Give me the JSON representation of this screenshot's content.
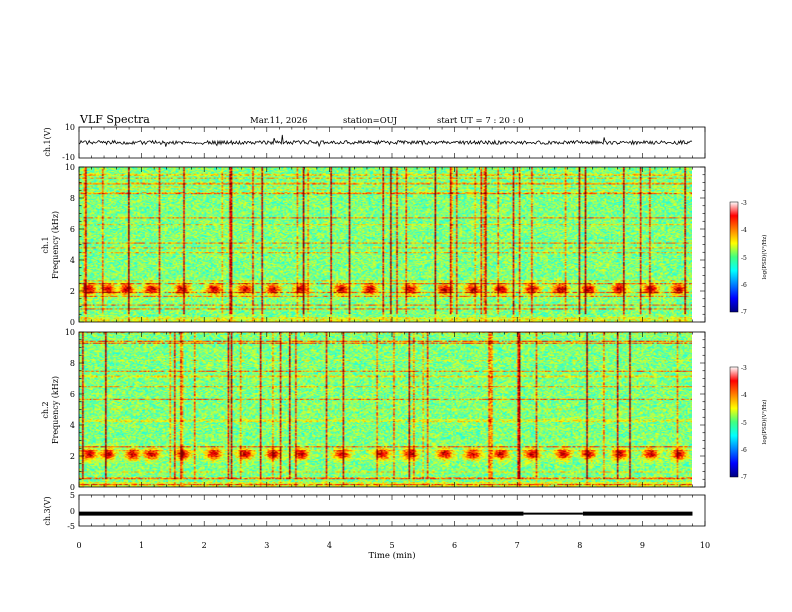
{
  "header": {
    "title": "VLF Spectra",
    "date": "Mar.11, 2026",
    "station": "station=OUJ",
    "start_ut": "start UT =  7 : 20 : 0"
  },
  "chart_data": [
    {
      "type": "line",
      "panel": "ch1-waveform",
      "ylabel": "ch.1(V)",
      "ylim": [
        -10,
        10
      ],
      "y_ticks": [
        "10",
        "-10"
      ],
      "description_values": {
        "baseline_v": 0,
        "amplitude_v": 1.2
      }
    },
    {
      "type": "heatmap",
      "panel": "ch1-spectrogram",
      "ylabel_line1": "ch.1",
      "ylabel_line2": "Frequency  (kHz)",
      "ylim": [
        0,
        10
      ],
      "y_ticks": [
        "0",
        "2",
        "4",
        "6",
        "8",
        "10"
      ],
      "colorbar": {
        "label": "log(PSD)(V²/Hz)",
        "range": [
          -7,
          -3
        ],
        "ticks": [
          "-3",
          "-4",
          "-5",
          "-6",
          "-7"
        ]
      },
      "band_center_khz": 2.0,
      "hiss_level": -5.2,
      "hiss_upper_khz": 5.6,
      "chorus_times_min": [
        0.15,
        0.45,
        0.75,
        1.15,
        1.65,
        2.15,
        2.65,
        3.1,
        3.55,
        4.2,
        4.65,
        5.3,
        5.85,
        6.3,
        6.75,
        7.25,
        7.7,
        8.15,
        8.65,
        9.15,
        9.6
      ]
    },
    {
      "type": "heatmap",
      "panel": "ch2-spectrogram",
      "ylabel_line1": "ch.2",
      "ylabel_line2": "Frequency  (kHz)",
      "ylim": [
        0,
        10
      ],
      "y_ticks": [
        "0",
        "2",
        "4",
        "6",
        "8",
        "10"
      ],
      "colorbar": {
        "label": "log(PSD)(V²/Hz)",
        "range": [
          -7,
          -3
        ],
        "ticks": [
          "-3",
          "-4",
          "-5",
          "-6",
          "-7"
        ]
      },
      "band_center_khz": 2.0,
      "hiss_level": -5.0,
      "hiss_upper_khz": 6.2,
      "chorus_times_min": [
        0.15,
        0.45,
        0.85,
        1.15,
        1.65,
        2.15,
        2.65,
        3.1,
        3.55,
        4.2,
        4.85,
        5.3,
        5.85,
        6.3,
        6.75,
        7.25,
        7.75,
        8.15,
        8.65,
        9.15,
        9.6
      ]
    },
    {
      "type": "line",
      "panel": "ch3-waveform",
      "ylabel": "ch.3(V)",
      "ylim": [
        -5,
        5
      ],
      "y_ticks": [
        "5",
        "0",
        "-5"
      ],
      "level_v": -1.0,
      "dropout_min": [
        7.1,
        8.05
      ],
      "xlabel": "Time  (min)",
      "xlim": [
        0,
        10
      ],
      "x_ticks": [
        "0",
        "1",
        "2",
        "3",
        "4",
        "5",
        "6",
        "7",
        "8",
        "9",
        "10"
      ]
    }
  ]
}
